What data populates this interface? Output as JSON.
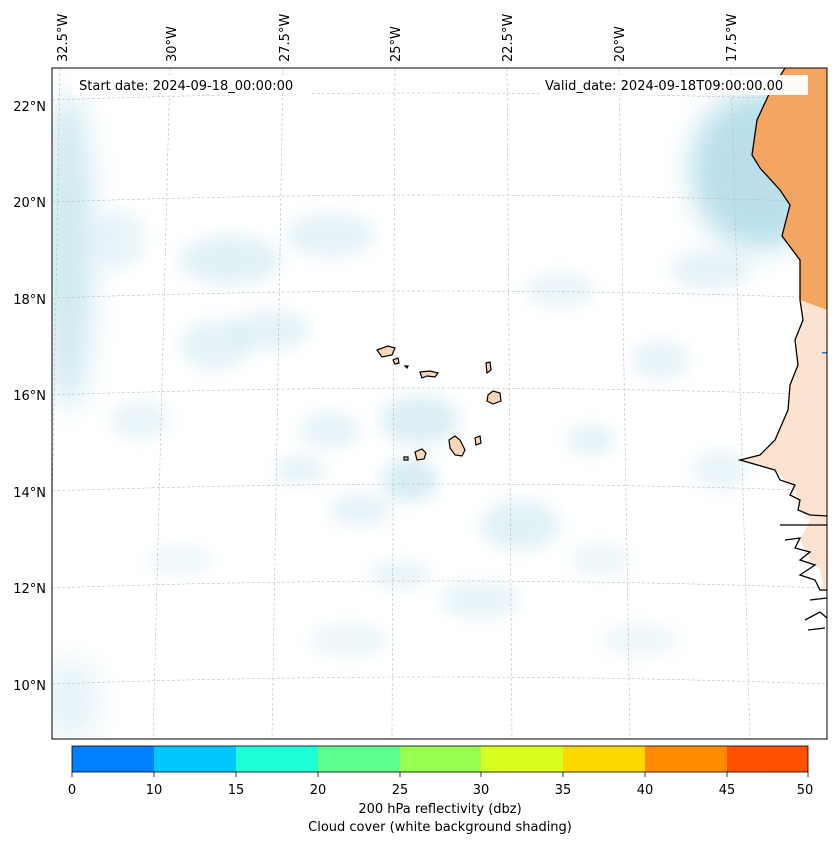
{
  "map": {
    "start_date": "Start date: 2024-09-18_00:00:00",
    "valid_date": "Valid_date: 2024-09-18T09:00:00.00",
    "lon_labels": [
      "32.5°W",
      "30°W",
      "27.5°W",
      "25°W",
      "22.5°W",
      "20°W",
      "17.5°W"
    ],
    "lat_labels": [
      "22°N",
      "20°N",
      "18°N",
      "16°N",
      "14°N",
      "12°N",
      "10°N"
    ],
    "colors": {
      "land_africa": "#f3a561",
      "land_islands": "#f8d6b7",
      "cloud": "#a9d8e6",
      "coast": "#000000",
      "grid": "#bdbdbd"
    }
  },
  "colorbar": {
    "ticks": [
      "0",
      "10",
      "15",
      "20",
      "25",
      "30",
      "35",
      "40",
      "45",
      "50"
    ],
    "colors": [
      "#0080ff",
      "#00c8ff",
      "#1effd8",
      "#5cff8c",
      "#96ff50",
      "#d8ff1e",
      "#ffd800",
      "#ff8c00",
      "#ff5000"
    ],
    "label_line1": "200 hPa reflectivity (dbz)",
    "label_line2": "Cloud cover (white background shading)"
  }
}
